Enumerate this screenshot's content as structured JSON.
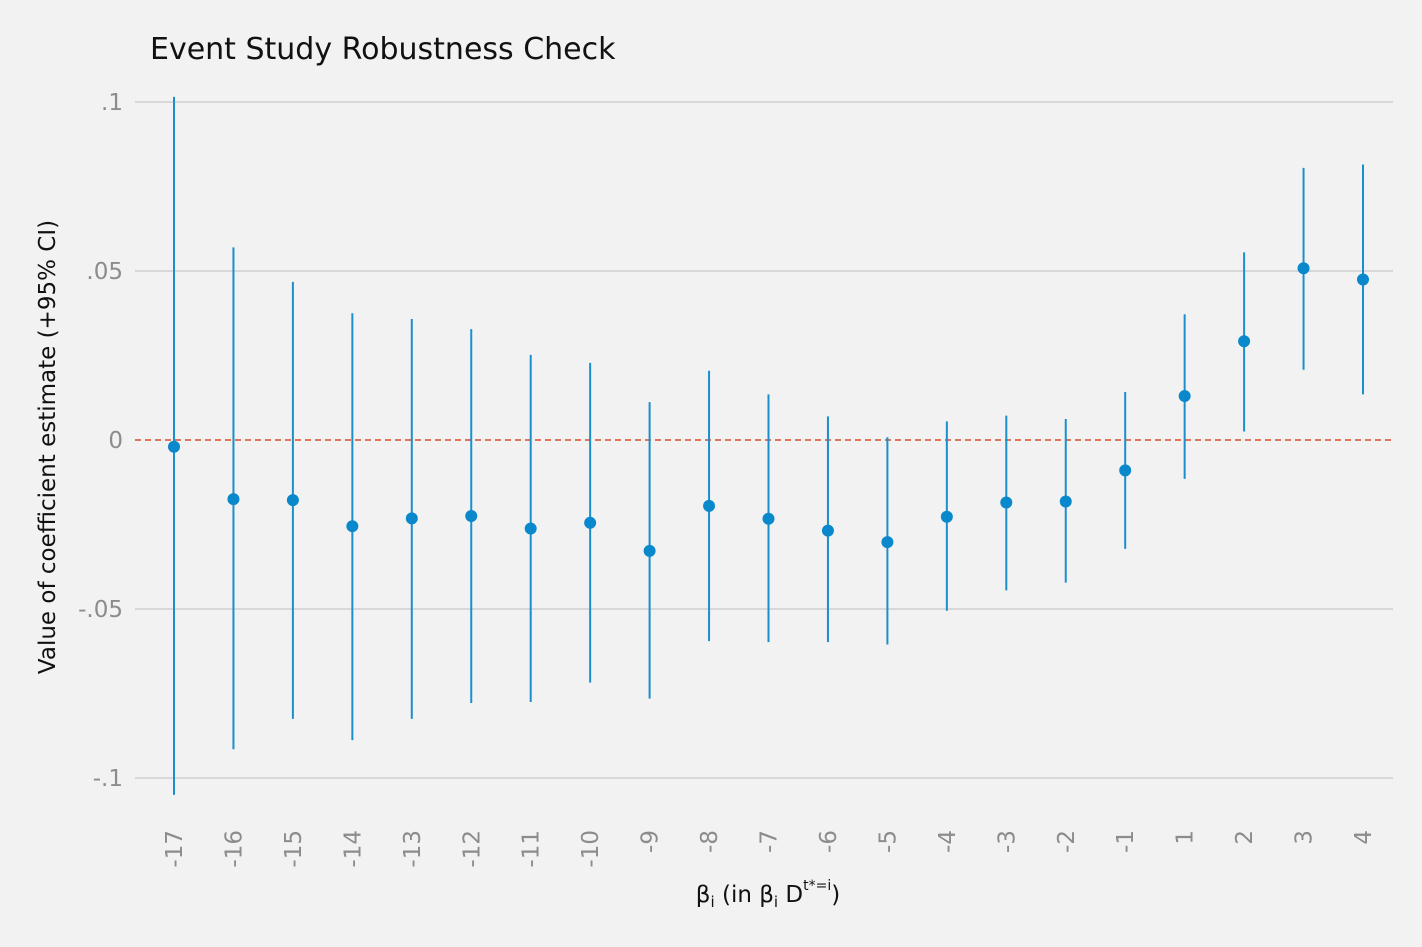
{
  "chart_data": {
    "type": "scatter",
    "subtype": "coefficient plot with 95% confidence intervals",
    "title": "Event Study Robustness Check",
    "ylabel": "Value of coefficient estimate (+95% CI)",
    "xlabel": {
      "base": "β",
      "sub": "i",
      "mid": " (in β",
      "sub2": "i",
      "after": " D",
      "sup": "t*=i",
      "close": ")"
    },
    "categories": [
      "-17",
      "-16",
      "-15",
      "-14",
      "-13",
      "-12",
      "-11",
      "-10",
      "-9",
      "-8",
      "-7",
      "-6",
      "-5",
      "-4",
      "-3",
      "-2",
      "-1",
      "1",
      "2",
      "3",
      "4"
    ],
    "estimates": [
      -0.002,
      -0.0175,
      -0.0178,
      -0.0255,
      -0.0232,
      -0.0225,
      -0.0262,
      -0.0245,
      -0.0328,
      -0.0195,
      -0.0233,
      -0.0268,
      -0.0302,
      -0.0227,
      -0.0185,
      -0.0182,
      -0.009,
      0.013,
      0.0292,
      0.0508,
      0.0475
    ],
    "ci_lower": [
      -0.105,
      -0.0915,
      -0.0825,
      -0.0888,
      -0.0825,
      -0.0778,
      -0.0775,
      -0.0718,
      -0.0765,
      -0.0595,
      -0.0598,
      -0.0598,
      -0.0605,
      -0.0505,
      -0.0445,
      -0.0422,
      -0.0322,
      -0.0115,
      0.0025,
      0.0208,
      0.0135
    ],
    "ci_upper": [
      0.1015,
      0.057,
      0.0468,
      0.0375,
      0.0358,
      0.0328,
      0.0252,
      0.0228,
      0.0112,
      0.0205,
      0.0135,
      0.007,
      0.0008,
      0.0055,
      0.0072,
      0.0062,
      0.0142,
      0.0372,
      0.0555,
      0.0805,
      0.0815
    ],
    "yticks": [
      0.1,
      0.05,
      0,
      -0.05,
      -0.1
    ],
    "ytick_labels": [
      ".1",
      ".05",
      "0",
      "-.05",
      "-.1"
    ],
    "ylim": [
      -0.11,
      0.1
    ],
    "reference_line": 0,
    "grid": "horizontal",
    "colors": {
      "background": "#f2f2f2",
      "grid": "#cfcfcf",
      "point": "#0a88cc",
      "interval": "#1a8fcc",
      "reference_line": "#d94a2b",
      "tick_text": "#8c8c8c",
      "label_text": "#111111"
    }
  }
}
